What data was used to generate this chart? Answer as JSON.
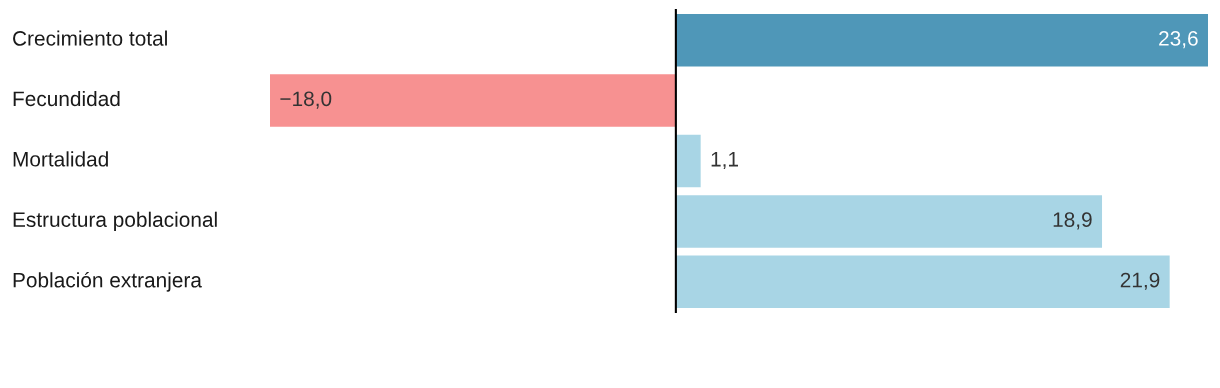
{
  "chart_data": {
    "type": "bar",
    "orientation": "horizontal",
    "categories": [
      "Crecimiento total",
      "Fecundidad",
      "Mortalidad",
      "Estructura poblacional",
      "Población extranjera"
    ],
    "values": [
      23.6,
      -18.0,
      1.1,
      18.9,
      21.9
    ],
    "colors": [
      "#4f97b8",
      "#f79191",
      "#a8d5e5",
      "#a8d5e5",
      "#a8d5e5"
    ],
    "value_labels": [
      "23,6",
      "−18,0",
      "1,1",
      "18,9",
      "21,9"
    ]
  }
}
